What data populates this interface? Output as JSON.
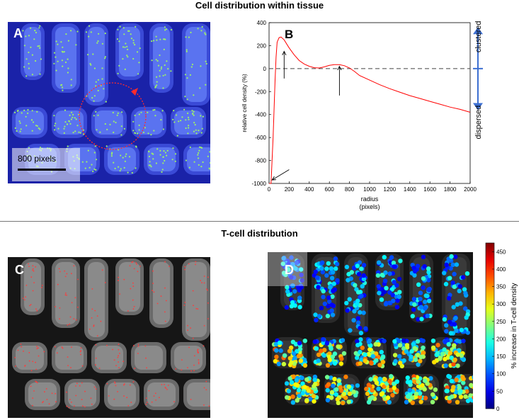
{
  "top_title": "Cell distribution within tissue",
  "bottom_title": "T-cell distribution",
  "panel_a": {
    "letter": "A",
    "scale_label": "800 pixels"
  },
  "panel_c": {
    "letter": "C"
  },
  "panel_d": {
    "letter": "D"
  },
  "chart_data": [
    {
      "type": "line",
      "panel": "B",
      "title": "",
      "xlabel": "radius\n(pixels)",
      "ylabel": "relative cell density (%)",
      "xlim": [
        0,
        2000
      ],
      "ylim": [
        -1000,
        400
      ],
      "x_ticks": [
        0,
        200,
        400,
        600,
        800,
        1000,
        1200,
        1400,
        1600,
        1800,
        2000
      ],
      "y_ticks": [
        -1000,
        -800,
        -600,
        -400,
        -200,
        0,
        200,
        400
      ],
      "reference_line": {
        "y": 0,
        "style": "dashed"
      },
      "series": [
        {
          "color": "#ff0000",
          "x": [
            0,
            20,
            40,
            60,
            70,
            80,
            100,
            120,
            150,
            200,
            250,
            300,
            350,
            400,
            450,
            500,
            550,
            600,
            650,
            700,
            750,
            800,
            850,
            900,
            1000,
            1100,
            1200,
            1300,
            1400,
            1500,
            1600,
            1700,
            1800,
            1900,
            2000
          ],
          "y": [
            -1000,
            -1000,
            -600,
            -100,
            100,
            230,
            270,
            275,
            250,
            180,
            120,
            70,
            40,
            20,
            8,
            5,
            15,
            28,
            35,
            35,
            25,
            5,
            -25,
            -60,
            -100,
            -140,
            -175,
            -205,
            -235,
            -260,
            -285,
            -310,
            -335,
            -355,
            -380
          ]
        }
      ],
      "annotations": [
        {
          "type": "arrow",
          "label": "",
          "at_x": 150,
          "at_y": 150
        },
        {
          "type": "arrow",
          "label": "",
          "at_x": 700,
          "at_y": 20
        },
        {
          "type": "arrow",
          "label": "",
          "at_x": 30,
          "at_y": -970
        }
      ],
      "side_labels": {
        "top": "clustered",
        "bottom": "dispersed"
      },
      "panel_letter": "B"
    },
    {
      "type": "heatmap",
      "panel": "D",
      "colorbar": {
        "label": "% increase in T-cell density",
        "range": [
          0,
          475
        ],
        "ticks": [
          0,
          50,
          100,
          150,
          200,
          250,
          300,
          350,
          400,
          450
        ],
        "colormap": "jet"
      }
    }
  ],
  "colors": {
    "tissue_bg": "#1a22a8",
    "tissue_mid": "#3a4ad6",
    "tissue_light": "#5a73f0",
    "cell_dot": "#9cf06a",
    "gray_bg": "#161616",
    "gray_tissue": "#6a6a6a",
    "tcell": "#ff3b3b",
    "arrow_blue": "#3d6fd1"
  }
}
